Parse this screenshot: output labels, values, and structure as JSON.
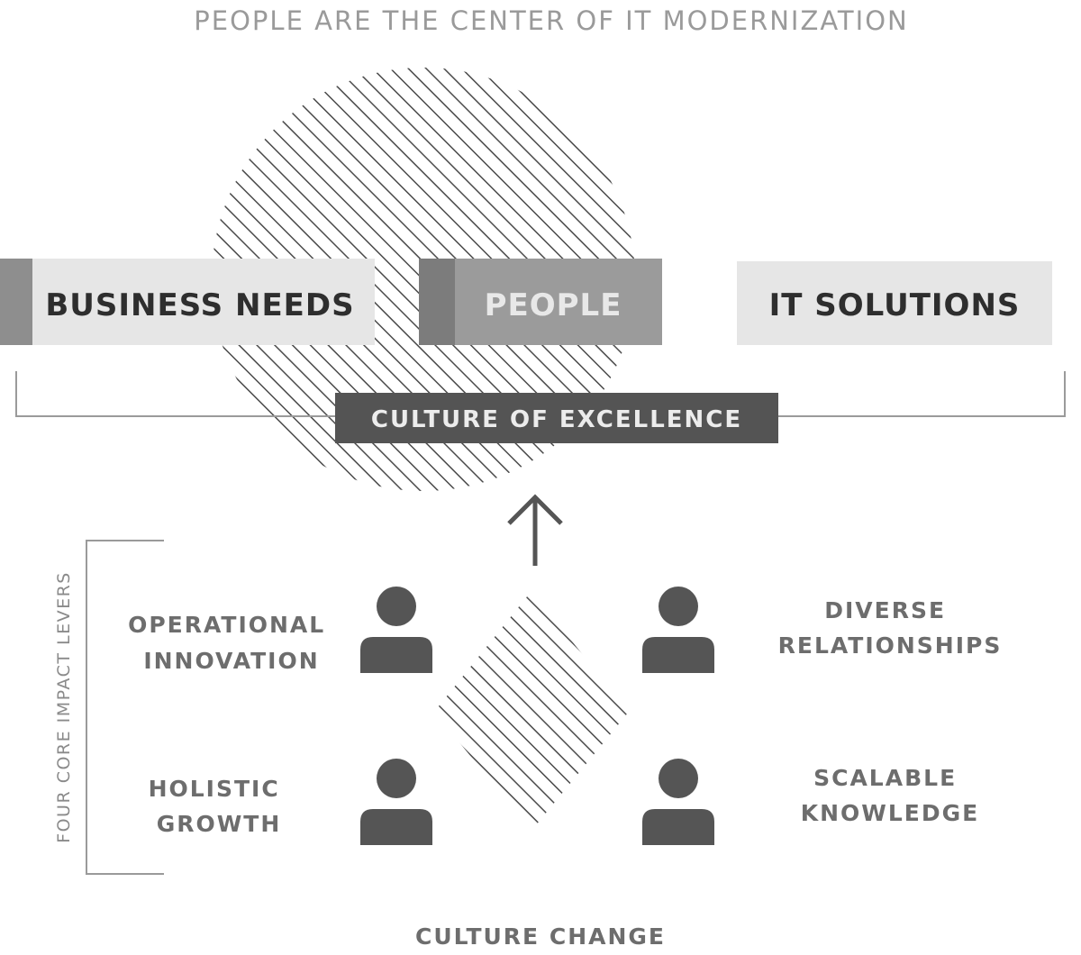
{
  "title": "PEOPLE ARE THE CENTER OF IT MODERNIZATION",
  "boxes": {
    "business_needs": "BUSINESS NEEDS",
    "people": "PEOPLE",
    "it_solutions": "IT SOLUTIONS"
  },
  "culture_band": "CULTURE OF EXCELLENCE",
  "levers_label": "FOUR CORE IMPACT LEVERS",
  "levers": {
    "operational_innovation": [
      "OPERATIONAL",
      "INNOVATION"
    ],
    "diverse_relationships": [
      "DIVERSE",
      "RELATIONSHIPS"
    ],
    "holistic_growth": [
      "HOLISTIC",
      "GROWTH"
    ],
    "scalable_knowledge": [
      "SCALABLE",
      "KNOWLEDGE"
    ]
  },
  "footer": "CULTURE CHANGE",
  "colors": {
    "dark": "#545454",
    "mid": "#9b9b9b",
    "light": "#e6e6e6",
    "hatch": "#4a4a4a"
  },
  "icons": {
    "person": "person-icon",
    "arrow": "arrow-up-icon"
  }
}
